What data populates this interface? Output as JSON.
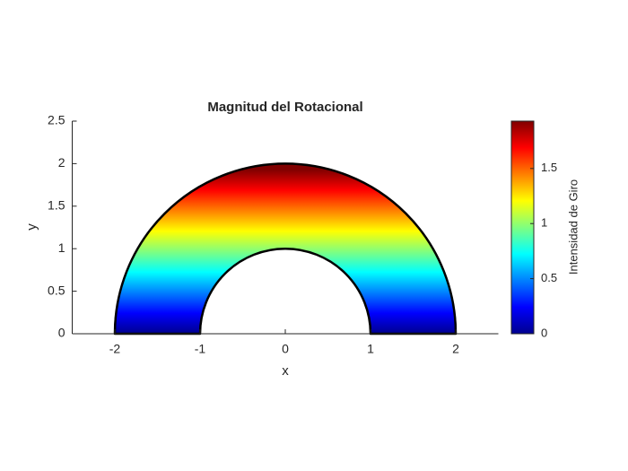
{
  "chart_data": {
    "type": "contourf",
    "title": "Magnitud del Rotacional",
    "xlabel": "x",
    "ylabel": "y",
    "xlim": [
      -2.5,
      2.5
    ],
    "ylim": [
      0,
      2.5
    ],
    "xticks": [
      -2,
      -1,
      0,
      1,
      2
    ],
    "yticks": [
      0,
      0.5,
      1,
      1.5,
      2,
      2.5
    ],
    "r_inner": 1,
    "r_outer": 2,
    "colormap": "jet",
    "colorbar": {
      "label": "Intensidad de Giro",
      "clim": [
        0,
        1.93
      ],
      "ticks": [
        0,
        0.5,
        1,
        1.5
      ]
    }
  }
}
